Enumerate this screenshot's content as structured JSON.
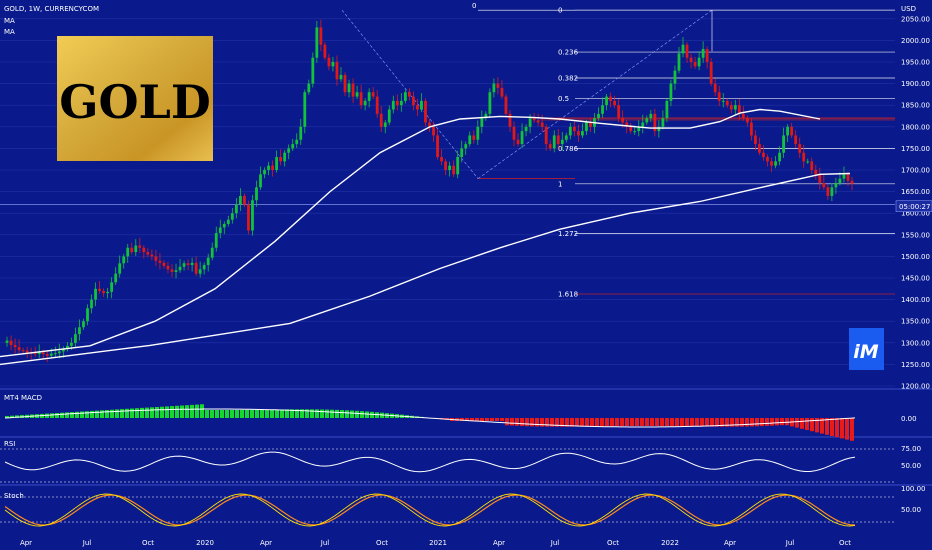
{
  "header": {
    "title": "GOLD, 1W, CURRENCYCOM",
    "ma1": "MA",
    "ma2": "MA"
  },
  "logo": {
    "text": "GOLD"
  },
  "badge": {
    "text": "iM"
  },
  "colors": {
    "background": "#0a1a8c",
    "up": "#12c23a",
    "down": "#e01818",
    "line": "#ffffff",
    "fib_red": "#d22020",
    "macd_up": "#17d82c",
    "macd_down": "#e81a1a"
  },
  "chart_data": [
    {
      "type": "candlestick",
      "title": "GOLD, 1W, CURRENCYCOM",
      "price_axis": {
        "unit": "USD",
        "ylim": [
          1200,
          2075
        ],
        "ticks": [
          1200,
          1250,
          1300,
          1350,
          1400,
          1450,
          1500,
          1550,
          1600,
          1650,
          1700,
          1750,
          1800,
          1850,
          1900,
          1950,
          2000,
          2050
        ]
      },
      "last_price_label": "05:00:27",
      "time_axis": [
        "Apr",
        "Jul",
        "Oct",
        "2020",
        "Apr",
        "Jul",
        "Oct",
        "2021",
        "Apr",
        "Jul",
        "Oct",
        "2022",
        "Apr",
        "Jul",
        "Oct"
      ],
      "fib_levels": [
        {
          "label": "0",
          "value": 2070
        },
        {
          "label": "0.236",
          "value": 1973
        },
        {
          "label": "0.382",
          "value": 1913
        },
        {
          "label": "0.5",
          "value": 1866
        },
        {
          "label": "0.786",
          "value": 1750
        },
        {
          "label": "1",
          "value": 1668
        },
        {
          "label": "1.272",
          "value": 1553
        },
        {
          "label": "1.618",
          "value": 1413
        }
      ],
      "fib_left_label": "0",
      "close_series": [
        1300,
        1305,
        1295,
        1290,
        1283,
        1282,
        1277,
        1276,
        1274,
        1278,
        1274,
        1270,
        1275,
        1276,
        1280,
        1286,
        1293,
        1300,
        1320,
        1336,
        1350,
        1380,
        1400,
        1425,
        1420,
        1415,
        1418,
        1440,
        1460,
        1484,
        1500,
        1520,
        1510,
        1525,
        1520,
        1510,
        1504,
        1500,
        1490,
        1485,
        1478,
        1470,
        1464,
        1468,
        1476,
        1484,
        1480,
        1485,
        1460,
        1470,
        1480,
        1497,
        1520,
        1554,
        1567,
        1575,
        1585,
        1600,
        1620,
        1640,
        1620,
        1560,
        1630,
        1660,
        1690,
        1700,
        1710,
        1700,
        1730,
        1720,
        1740,
        1750,
        1760,
        1770,
        1800,
        1880,
        1900,
        1960,
        2030,
        1990,
        1960,
        1940,
        1950,
        1910,
        1920,
        1880,
        1900,
        1870,
        1880,
        1850,
        1860,
        1880,
        1870,
        1830,
        1800,
        1810,
        1840,
        1860,
        1850,
        1860,
        1880,
        1870,
        1850,
        1840,
        1860,
        1810,
        1800,
        1780,
        1730,
        1720,
        1700,
        1710,
        1690,
        1730,
        1750,
        1760,
        1780,
        1770,
        1800,
        1820,
        1830,
        1880,
        1900,
        1890,
        1870,
        1830,
        1800,
        1770,
        1760,
        1790,
        1800,
        1820,
        1815,
        1810,
        1800,
        1760,
        1750,
        1780,
        1760,
        1770,
        1780,
        1800,
        1790,
        1780,
        1790,
        1810,
        1800,
        1820,
        1830,
        1850,
        1870,
        1860,
        1850,
        1820,
        1810,
        1800,
        1790,
        1790,
        1800,
        1810,
        1820,
        1830,
        1790,
        1800,
        1820,
        1860,
        1900,
        1930,
        1970,
        1990,
        1960,
        1950,
        1940,
        1960,
        1980,
        1950,
        1900,
        1880,
        1860,
        1860,
        1850,
        1840,
        1850,
        1830,
        1820,
        1810,
        1780,
        1760,
        1740,
        1730,
        1720,
        1710,
        1720,
        1740,
        1780,
        1800,
        1780,
        1760,
        1740,
        1720,
        1720,
        1700,
        1690,
        1670,
        1660,
        1640,
        1660,
        1670,
        1680,
        1690,
        1675,
        1668
      ],
      "ma_fast_points": [
        [
          0,
          1268
        ],
        [
          90,
          1293
        ],
        [
          155,
          1350
        ],
        [
          215,
          1425
        ],
        [
          275,
          1535
        ],
        [
          330,
          1650
        ],
        [
          380,
          1740
        ],
        [
          430,
          1800
        ],
        [
          460,
          1818
        ],
        [
          500,
          1824
        ],
        [
          530,
          1822
        ],
        [
          560,
          1818
        ],
        [
          600,
          1808
        ],
        [
          650,
          1797
        ],
        [
          690,
          1797
        ],
        [
          720,
          1812
        ],
        [
          740,
          1832
        ],
        [
          760,
          1840
        ],
        [
          780,
          1836
        ],
        [
          820,
          1818
        ]
      ],
      "ma_slow_points": [
        [
          0,
          1250
        ],
        [
          150,
          1294
        ],
        [
          290,
          1345
        ],
        [
          370,
          1408
        ],
        [
          440,
          1472
        ],
        [
          500,
          1520
        ],
        [
          560,
          1563
        ],
        [
          630,
          1600
        ],
        [
          700,
          1627
        ],
        [
          760,
          1659
        ],
        [
          820,
          1690
        ],
        [
          850,
          1692
        ]
      ],
      "macd": {
        "label": "MT4 MACD",
        "ticks": [
          "0.00"
        ]
      },
      "rsi": {
        "label": "RSI",
        "ticks": [
          "75.00",
          "50.00"
        ]
      },
      "stoch": {
        "label": "Stoch",
        "ticks": [
          "100.00",
          "50.00"
        ]
      }
    }
  ]
}
